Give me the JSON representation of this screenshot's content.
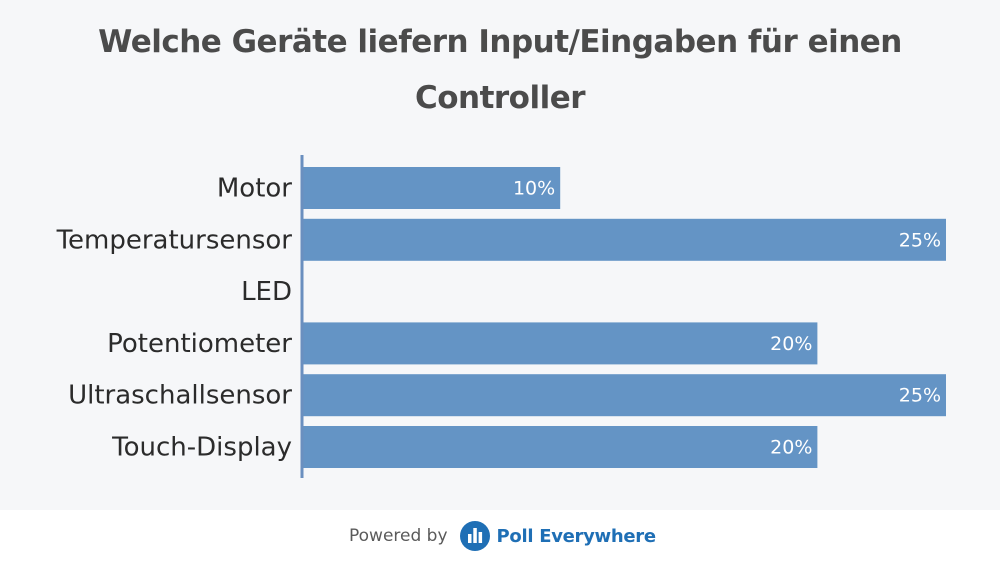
{
  "colors": {
    "bar": "#6494c5",
    "axis": "#6a8fbf",
    "category_text": "#2b2b2b",
    "value_text": "#ffffff",
    "brand": "#1f6fb5"
  },
  "footer": {
    "powered_by": "Powered by",
    "brand_name": "Poll Everywhere",
    "brand_icon": "poll-everywhere-logo-icon"
  },
  "chart_data": {
    "type": "bar",
    "orientation": "horizontal",
    "title": "Welche Geräte liefern Input/Eingaben für einen Controller",
    "categories": [
      "Motor",
      "Temperatursensor",
      "LED",
      "Potentiometer",
      "Ultraschallsensor",
      "Touch-Display"
    ],
    "values": [
      10,
      25,
      0,
      20,
      25,
      20
    ],
    "value_labels": [
      "10%",
      "25%",
      "",
      "20%",
      "25%",
      "20%"
    ],
    "unit": "%",
    "xlim": [
      0,
      25
    ],
    "grid": false,
    "legend": "none"
  }
}
